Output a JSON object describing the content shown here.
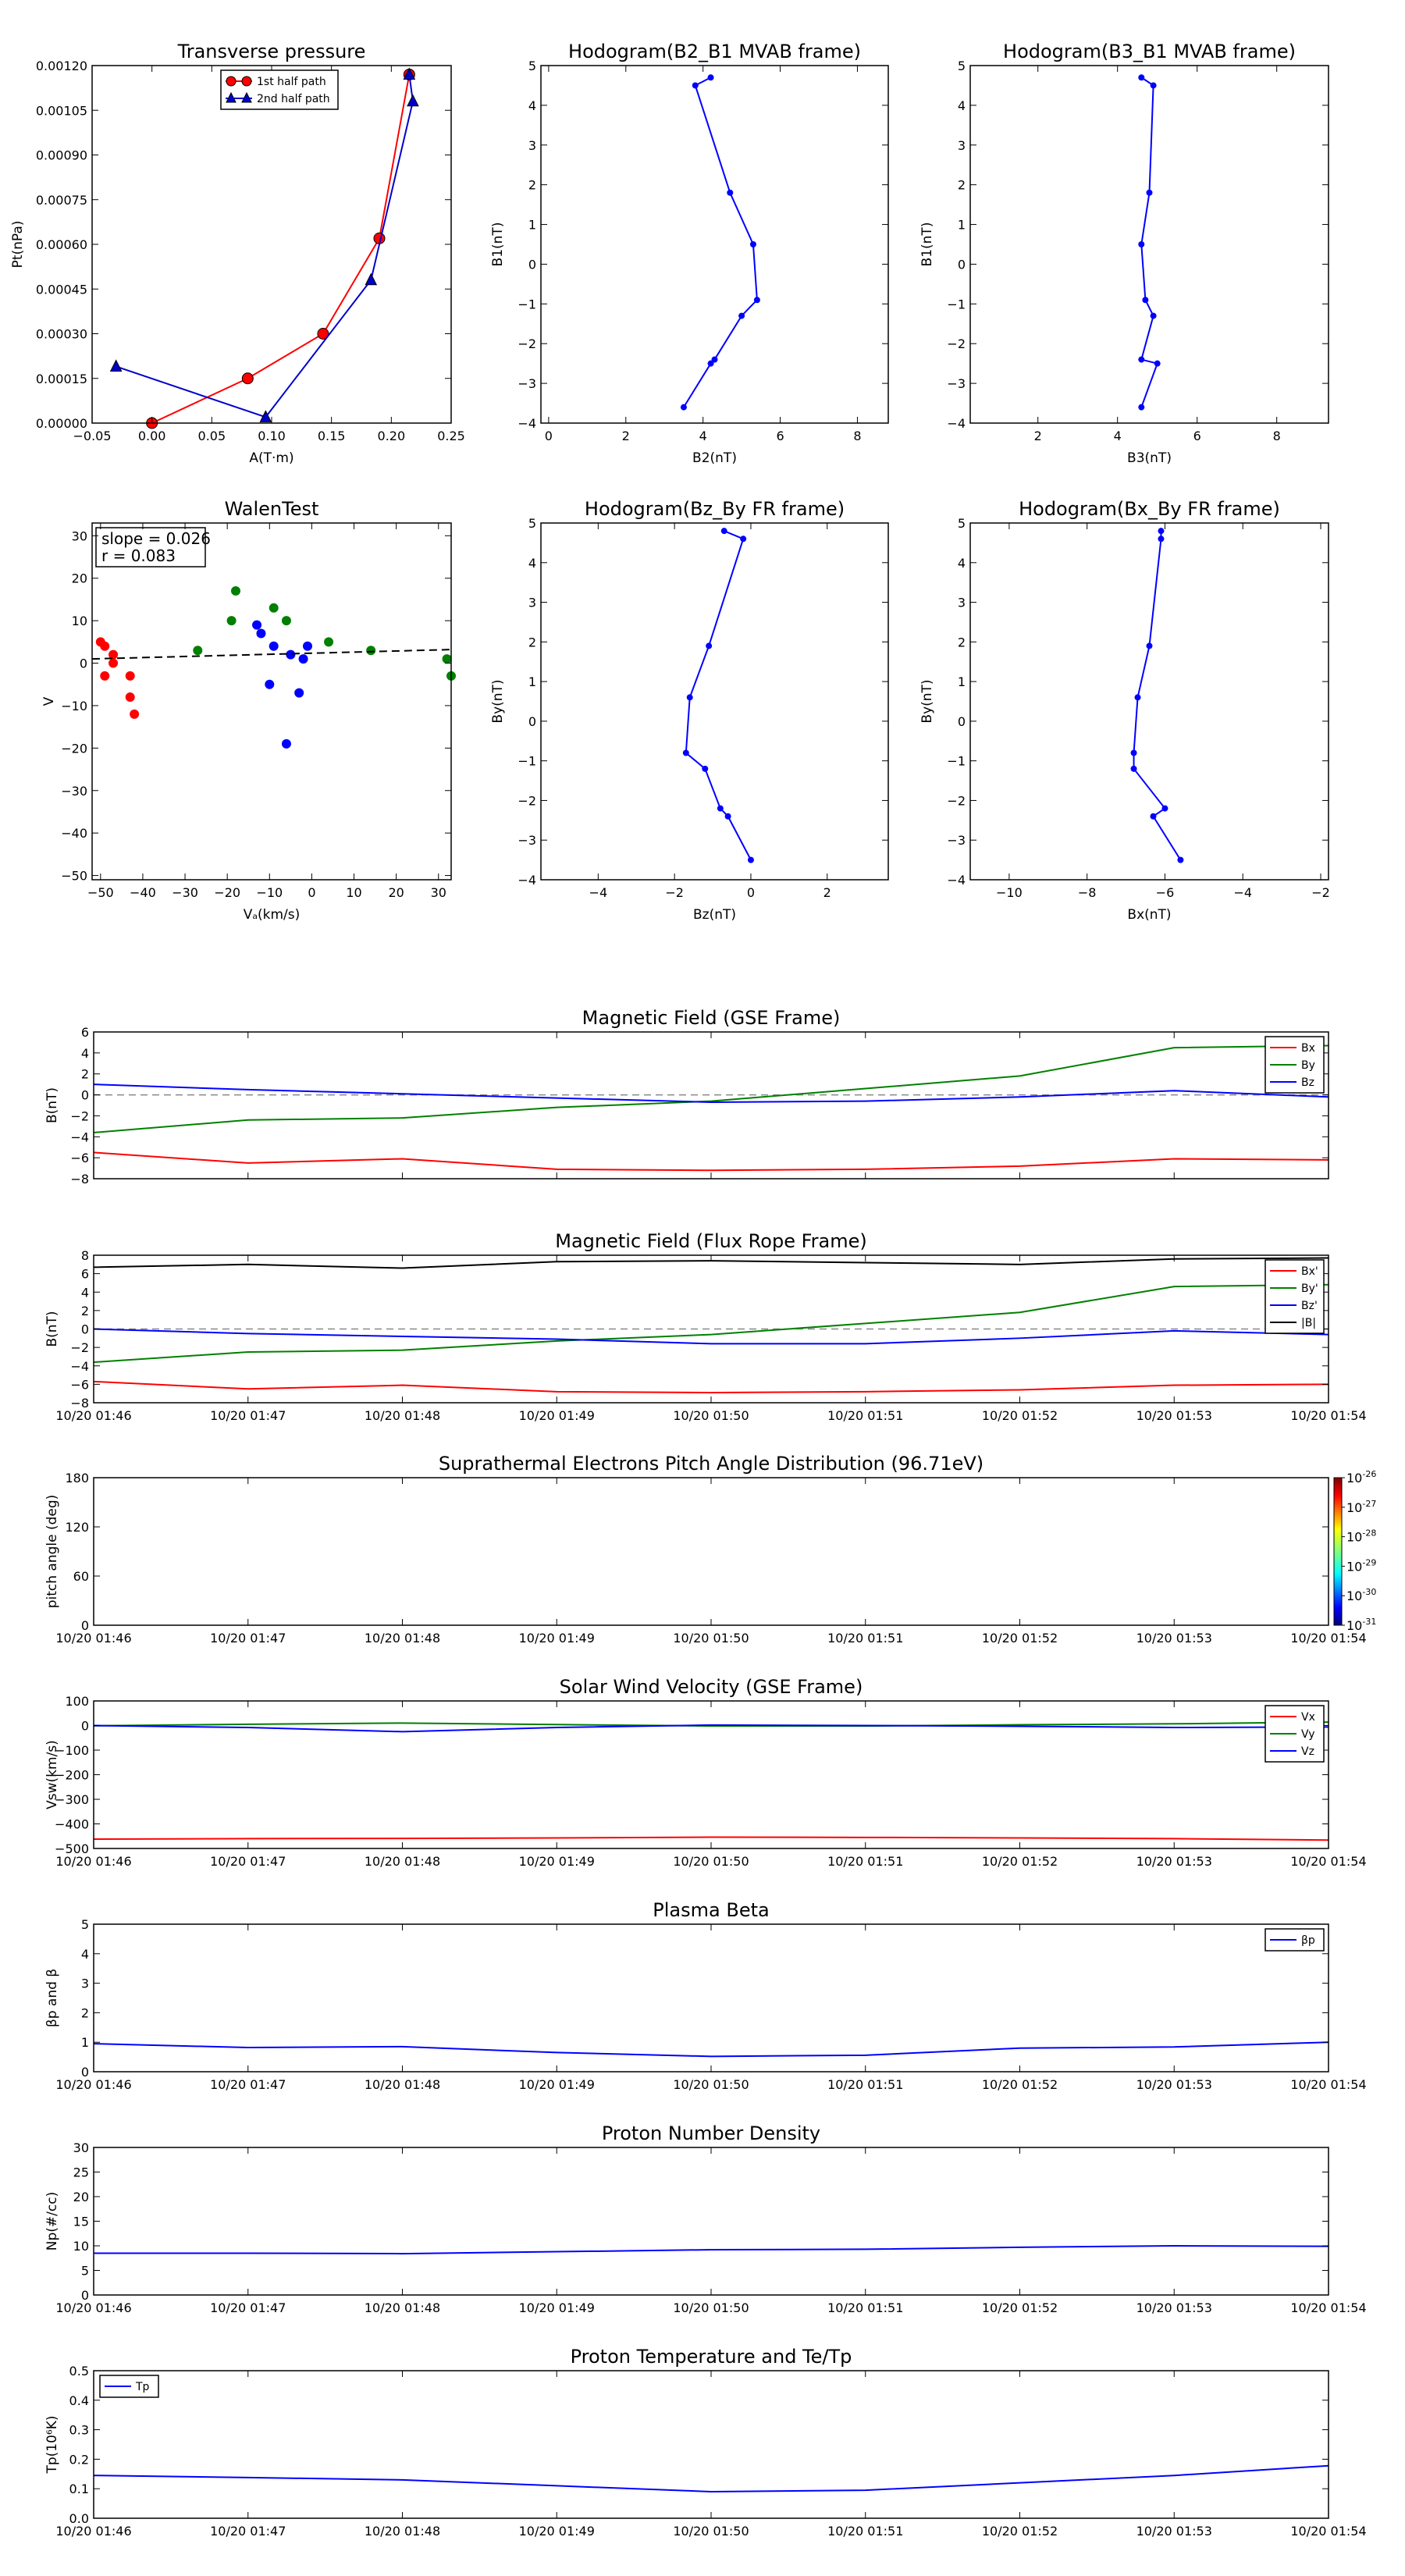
{
  "figure": {
    "background": "#ffffff"
  },
  "chart_data": [
    {
      "id": "tp",
      "type": "line",
      "title": "Transverse pressure",
      "xlabel": "A(T·m)",
      "ylabel": "Pt(nPa)",
      "xlim": [
        -0.05,
        0.25
      ],
      "ylim": [
        0,
        0.0012
      ],
      "xticks": [
        -0.05,
        0.0,
        0.05,
        0.1,
        0.15,
        0.2,
        0.25
      ],
      "xticklabels": [
        "−0.05",
        "0.00",
        "0.05",
        "0.10",
        "0.15",
        "0.20",
        "0.25"
      ],
      "yticks": [
        0,
        0.00015,
        0.0003,
        0.00045,
        0.0006,
        0.00075,
        0.0009,
        0.00105,
        0.0012
      ],
      "yticklabels": [
        "0.00000",
        "0.00015",
        "0.00030",
        "0.00045",
        "0.00060",
        "0.00075",
        "0.00090",
        "0.00105",
        "0.00120"
      ],
      "legend": {
        "position": "top-center"
      },
      "series": [
        {
          "name": "1st half path",
          "color": "#ff0000",
          "marker": "circle",
          "x": [
            0.0,
            0.08,
            0.143,
            0.19,
            0.215
          ],
          "y": [
            0.0,
            0.00015,
            0.0003,
            0.00062,
            0.00117
          ]
        },
        {
          "name": "2nd half path",
          "color": "#0000cc",
          "marker": "triangle",
          "x": [
            0.215,
            0.218,
            0.183,
            0.095,
            -0.03
          ],
          "y": [
            0.00117,
            0.00108,
            0.00048,
            2e-05,
            0.00019
          ]
        }
      ]
    },
    {
      "id": "hodo_b2b1",
      "type": "line",
      "title": "Hodogram(B2_B1 MVAB frame)",
      "xlabel": "B2(nT)",
      "ylabel": "B1(nT)",
      "xlim": [
        -0.2,
        8.8
      ],
      "ylim": [
        -4,
        5
      ],
      "xticks": [
        0,
        2,
        4,
        6,
        8
      ],
      "xticklabels": [
        "0",
        "2",
        "4",
        "6",
        "8"
      ],
      "yticks": [
        -4,
        -3,
        -2,
        -1,
        0,
        1,
        2,
        3,
        4,
        5
      ],
      "yticklabels": [
        "−4",
        "−3",
        "−2",
        "−1",
        "0",
        "1",
        "2",
        "3",
        "4",
        "5"
      ],
      "series": [
        {
          "color": "#0000ff",
          "marker": "dot",
          "x": [
            4.2,
            3.8,
            4.7,
            5.3,
            5.4,
            5.0,
            4.3,
            4.2,
            3.5
          ],
          "y": [
            4.7,
            4.5,
            1.8,
            0.5,
            -0.9,
            -1.3,
            -2.4,
            -2.5,
            -3.6
          ]
        }
      ]
    },
    {
      "id": "hodo_b3b1",
      "type": "line",
      "title": "Hodogram(B3_B1 MVAB frame)",
      "xlabel": "B3(nT)",
      "ylabel": "B1(nT)",
      "xlim": [
        0.3,
        9.3
      ],
      "ylim": [
        -4,
        5
      ],
      "xticks": [
        2,
        4,
        6,
        8
      ],
      "xticklabels": [
        "2",
        "4",
        "6",
        "8"
      ],
      "yticks": [
        -4,
        -3,
        -2,
        -1,
        0,
        1,
        2,
        3,
        4,
        5
      ],
      "yticklabels": [
        "−4",
        "−3",
        "−2",
        "−1",
        "0",
        "1",
        "2",
        "3",
        "4",
        "5"
      ],
      "series": [
        {
          "color": "#0000ff",
          "marker": "dot",
          "x": [
            4.6,
            4.9,
            4.8,
            4.6,
            4.7,
            4.9,
            4.6,
            5.0,
            4.6
          ],
          "y": [
            4.7,
            4.5,
            1.8,
            0.5,
            -0.9,
            -1.3,
            -2.4,
            -2.5,
            -3.6
          ]
        }
      ]
    },
    {
      "id": "walen",
      "type": "scatter",
      "title": "WalenTest",
      "xlabel": "Vₐ(km/s)",
      "ylabel": "V",
      "xlim": [
        -52,
        33
      ],
      "ylim": [
        -51,
        33
      ],
      "xticks": [
        -50,
        -40,
        -30,
        -20,
        -10,
        0,
        10,
        20,
        30
      ],
      "xticklabels": [
        "−50",
        "−40",
        "−30",
        "−20",
        "−10",
        "0",
        "10",
        "20",
        "30"
      ],
      "yticks": [
        -50,
        -40,
        -30,
        -20,
        -10,
        0,
        10,
        20,
        30
      ],
      "yticklabels": [
        "−50",
        "−40",
        "−30",
        "−20",
        "−10",
        "0",
        "10",
        "20",
        "30"
      ],
      "annotation": [
        "slope = 0.026",
        "r = 0.083"
      ],
      "fit": {
        "x": [
          -52,
          33
        ],
        "y": [
          1.0,
          3.2
        ],
        "color": "#000000",
        "dash": true
      },
      "series": [
        {
          "color": "#ff0000",
          "x": [
            -50,
            -49,
            -49,
            -47,
            -47,
            -43,
            -43,
            -42
          ],
          "y": [
            5,
            4,
            -3,
            0,
            2,
            -3,
            -8,
            -12
          ]
        },
        {
          "color": "#008000",
          "x": [
            -27,
            -19,
            -18,
            -9,
            -6,
            4,
            14,
            32,
            33
          ],
          "y": [
            3,
            10,
            17,
            13,
            10,
            5,
            3,
            1,
            -3
          ]
        },
        {
          "color": "#0000ff",
          "x": [
            -13,
            -12,
            -10,
            -9,
            -6,
            -5,
            -3,
            -1
          ],
          "y": [
            9,
            7,
            -5,
            4,
            -19,
            2,
            -7,
            4
          ]
        },
        {
          "color": "#0000ff",
          "x": [
            -2
          ],
          "y": [
            1
          ]
        }
      ]
    },
    {
      "id": "hodo_bzby",
      "type": "line",
      "title": "Hodogram(Bz_By FR frame)",
      "xlabel": "Bz(nT)",
      "ylabel": "By(nT)",
      "xlim": [
        -5.5,
        3.6
      ],
      "ylim": [
        -4,
        5
      ],
      "xticks": [
        -4,
        -2,
        0,
        2
      ],
      "xticklabels": [
        "−4",
        "−2",
        "0",
        "2"
      ],
      "yticks": [
        -4,
        -3,
        -2,
        -1,
        0,
        1,
        2,
        3,
        4,
        5
      ],
      "yticklabels": [
        "−4",
        "−3",
        "−2",
        "−1",
        "0",
        "1",
        "2",
        "3",
        "4",
        "5"
      ],
      "series": [
        {
          "color": "#0000ff",
          "marker": "dot",
          "x": [
            -0.7,
            -0.2,
            -1.1,
            -1.6,
            -1.7,
            -1.2,
            -0.8,
            -0.6,
            0.0
          ],
          "y": [
            4.8,
            4.6,
            1.9,
            0.6,
            -0.8,
            -1.2,
            -2.2,
            -2.4,
            -3.5
          ]
        }
      ]
    },
    {
      "id": "hodo_bxby",
      "type": "line",
      "title": "Hodogram(Bx_By FR frame)",
      "xlabel": "Bx(nT)",
      "ylabel": "By(nT)",
      "xlim": [
        -11,
        -1.8
      ],
      "ylim": [
        -4,
        5
      ],
      "xticks": [
        -10,
        -8,
        -6,
        -4,
        -2
      ],
      "xticklabels": [
        "−10",
        "−8",
        "−6",
        "−4",
        "−2"
      ],
      "yticks": [
        -4,
        -3,
        -2,
        -1,
        0,
        1,
        2,
        3,
        4,
        5
      ],
      "yticklabels": [
        "−4",
        "−3",
        "−2",
        "−1",
        "0",
        "1",
        "2",
        "3",
        "4",
        "5"
      ],
      "series": [
        {
          "color": "#0000ff",
          "marker": "dot",
          "x": [
            -6.1,
            -6.1,
            -6.4,
            -6.7,
            -6.8,
            -6.8,
            -6.0,
            -6.3,
            -5.6
          ],
          "y": [
            4.8,
            4.6,
            1.9,
            0.6,
            -0.8,
            -1.2,
            -2.2,
            -2.4,
            -3.5
          ]
        }
      ]
    },
    {
      "id": "bgse",
      "type": "line",
      "title": "Magnetic Field (GSE Frame)",
      "ylabel": "B(nT)",
      "xlim": [
        0,
        8
      ],
      "ylim": [
        -8,
        6
      ],
      "yticks": [
        -8,
        -6,
        -4,
        -2,
        0,
        2,
        4,
        6
      ],
      "yticklabels": [
        "−8",
        "−6",
        "−4",
        "−2",
        "0",
        "2",
        "4",
        "6"
      ],
      "xticklabels": [],
      "zero_line": true,
      "legend": {
        "position": "top-right"
      },
      "series": [
        {
          "name": "Bx",
          "color": "#ff0000",
          "y": [
            -5.5,
            -6.5,
            -6.1,
            -7.1,
            -7.2,
            -7.1,
            -6.8,
            -6.1,
            -6.2
          ]
        },
        {
          "name": "By",
          "color": "#008000",
          "y": [
            -3.6,
            -2.4,
            -2.2,
            -1.2,
            -0.6,
            0.6,
            1.8,
            4.5,
            4.7
          ]
        },
        {
          "name": "Bz",
          "color": "#0000ff",
          "y": [
            1.0,
            0.5,
            0.1,
            -0.3,
            -0.7,
            -0.6,
            -0.2,
            0.4,
            -0.2
          ]
        }
      ]
    },
    {
      "id": "bfr",
      "type": "line",
      "title": "Magnetic Field (Flux Rope Frame)",
      "ylabel": "B(nT)",
      "xlim": [
        0,
        8
      ],
      "ylim": [
        -8,
        8
      ],
      "yticks": [
        -8,
        -6,
        -4,
        -2,
        0,
        2,
        4,
        6,
        8
      ],
      "yticklabels": [
        "−8",
        "−6",
        "−4",
        "−2",
        "0",
        "2",
        "4",
        "6",
        "8"
      ],
      "xticklabels": [
        "10/20 01:46",
        "10/20 01:47",
        "10/20 01:48",
        "10/20 01:49",
        "10/20 01:50",
        "10/20 01:51",
        "10/20 01:52",
        "10/20 01:53",
        "10/20 01:54"
      ],
      "zero_line": true,
      "legend": {
        "position": "top-right"
      },
      "series": [
        {
          "name": "Bx'",
          "color": "#ff0000",
          "y": [
            -5.7,
            -6.5,
            -6.1,
            -6.8,
            -6.9,
            -6.8,
            -6.6,
            -6.1,
            -6.0
          ]
        },
        {
          "name": "By'",
          "color": "#008000",
          "y": [
            -3.6,
            -2.5,
            -2.3,
            -1.3,
            -0.6,
            0.6,
            1.8,
            4.6,
            4.8
          ]
        },
        {
          "name": "Bz'",
          "color": "#0000ff",
          "y": [
            0.0,
            -0.5,
            -0.8,
            -1.1,
            -1.6,
            -1.6,
            -1.0,
            -0.2,
            -0.6
          ]
        },
        {
          "name": "|B|",
          "color": "#000000",
          "y": [
            6.7,
            7.0,
            6.6,
            7.3,
            7.4,
            7.2,
            7.0,
            7.6,
            7.7
          ]
        }
      ]
    },
    {
      "id": "pad",
      "type": "heatmap",
      "title": "Suprathermal Electrons Pitch Angle Distribution (96.71eV)",
      "ylabel": "pitch angle (deg)",
      "xlim": [
        0,
        8
      ],
      "ylim": [
        0,
        180
      ],
      "yticks": [
        0,
        60,
        120,
        180
      ],
      "yticklabels": [
        "0",
        "60",
        "120",
        "180"
      ],
      "xticklabels": [
        "10/20 01:46",
        "10/20 01:47",
        "10/20 01:48",
        "10/20 01:49",
        "10/20 01:50",
        "10/20 01:51",
        "10/20 01:52",
        "10/20 01:53",
        "10/20 01:54"
      ],
      "colorbar": {
        "labels": [
          "10",
          "10",
          "10",
          "10",
          "10",
          "10"
        ],
        "exponents": [
          "-26",
          "-27",
          "-28",
          "-29",
          "-30",
          "-31"
        ]
      }
    },
    {
      "id": "vsw",
      "type": "line",
      "title": "Solar Wind Velocity (GSE Frame)",
      "ylabel": "Vsw(km/s)",
      "xlim": [
        0,
        8
      ],
      "ylim": [
        -500,
        100
      ],
      "yticks": [
        -500,
        -400,
        -300,
        -200,
        -100,
        0,
        100
      ],
      "yticklabels": [
        "−500",
        "−400",
        "−300",
        "−200",
        "−100",
        "0",
        "100"
      ],
      "xticklabels": [
        "10/20 01:46",
        "10/20 01:47",
        "10/20 01:48",
        "10/20 01:49",
        "10/20 01:50",
        "10/20 01:51",
        "10/20 01:52",
        "10/20 01:53",
        "10/20 01:54"
      ],
      "legend": {
        "position": "top-right"
      },
      "series": [
        {
          "name": "Vx",
          "color": "#ff0000",
          "y": [
            -462,
            -460,
            -459,
            -457,
            -454,
            -455,
            -457,
            -460,
            -466
          ]
        },
        {
          "name": "Vy",
          "color": "#008000",
          "y": [
            -1,
            5,
            10,
            4,
            -2,
            -2,
            3,
            7,
            14
          ]
        },
        {
          "name": "Vz",
          "color": "#0000ff",
          "y": [
            0,
            -8,
            -25,
            -8,
            2,
            0,
            -3,
            -8,
            -6
          ]
        }
      ]
    },
    {
      "id": "beta",
      "type": "line",
      "title": "Plasma Beta",
      "ylabel": "βp and β",
      "xlim": [
        0,
        8
      ],
      "ylim": [
        0,
        5
      ],
      "yticks": [
        0,
        1,
        2,
        3,
        4,
        5
      ],
      "yticklabels": [
        "0",
        "1",
        "2",
        "3",
        "4",
        "5"
      ],
      "xticklabels": [
        "10/20 01:46",
        "10/20 01:47",
        "10/20 01:48",
        "10/20 01:49",
        "10/20 01:50",
        "10/20 01:51",
        "10/20 01:52",
        "10/20 01:53",
        "10/20 01:54"
      ],
      "legend": {
        "position": "top-right"
      },
      "series": [
        {
          "name": "βp",
          "color": "#0000ff",
          "y": [
            0.95,
            0.82,
            0.85,
            0.65,
            0.52,
            0.56,
            0.8,
            0.84,
            1.0
          ]
        }
      ]
    },
    {
      "id": "np",
      "type": "line",
      "title": "Proton Number Density",
      "ylabel": "Np(#/cc)",
      "xlim": [
        0,
        8
      ],
      "ylim": [
        0,
        30
      ],
      "yticks": [
        0,
        5,
        10,
        15,
        20,
        25,
        30
      ],
      "yticklabels": [
        "0",
        "5",
        "10",
        "15",
        "20",
        "25",
        "30"
      ],
      "xticklabels": [
        "10/20 01:46",
        "10/20 01:47",
        "10/20 01:48",
        "10/20 01:49",
        "10/20 01:50",
        "10/20 01:51",
        "10/20 01:52",
        "10/20 01:53",
        "10/20 01:54"
      ],
      "series": [
        {
          "color": "#0000ff",
          "y": [
            8.5,
            8.5,
            8.4,
            8.8,
            9.2,
            9.3,
            9.7,
            10.0,
            9.9
          ]
        }
      ]
    },
    {
      "id": "tpk",
      "type": "line",
      "title": "Proton Temperature and Te/Tp",
      "ylabel": "Tp(10⁶K)",
      "xlim": [
        0,
        8
      ],
      "ylim": [
        0,
        0.5
      ],
      "yticks": [
        0,
        0.1,
        0.2,
        0.3,
        0.4,
        0.5
      ],
      "yticklabels": [
        "0.0",
        "0.1",
        "0.2",
        "0.3",
        "0.4",
        "0.5"
      ],
      "xticklabels": [
        "10/20 01:46",
        "10/20 01:47",
        "10/20 01:48",
        "10/20 01:49",
        "10/20 01:50",
        "10/20 01:51",
        "10/20 01:52",
        "10/20 01:53",
        "10/20 01:54"
      ],
      "legend": {
        "position": "top-left"
      },
      "series": [
        {
          "name": "Tp",
          "color": "#0000ff",
          "y": [
            0.145,
            0.138,
            0.13,
            0.11,
            0.09,
            0.095,
            0.12,
            0.145,
            0.178
          ]
        }
      ]
    }
  ]
}
